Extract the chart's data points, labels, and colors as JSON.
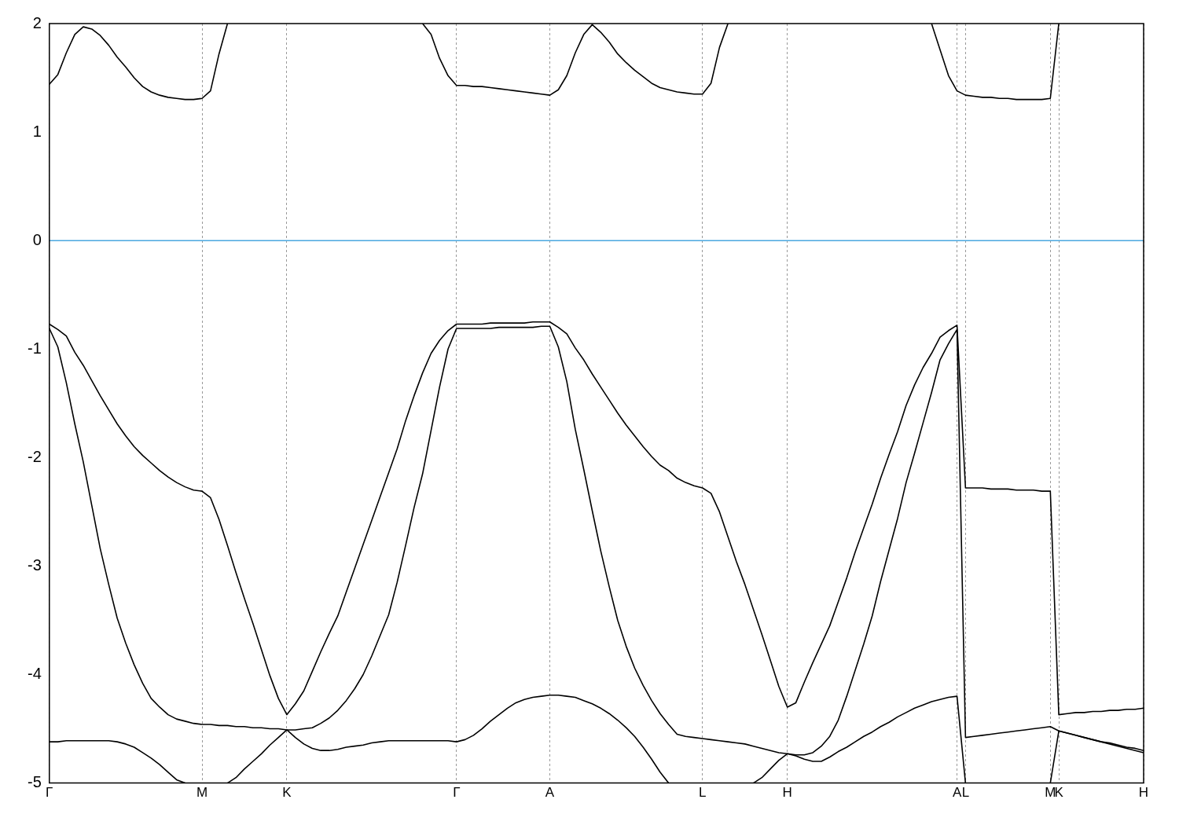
{
  "chart_data": {
    "type": "line",
    "ylim": [
      -5,
      2
    ],
    "categories": [
      "Γ",
      null,
      null,
      null,
      null,
      null,
      null,
      null,
      null,
      null,
      null,
      null,
      null,
      null,
      null,
      null,
      null,
      null,
      "M",
      null,
      null,
      null,
      null,
      null,
      null,
      null,
      null,
      null,
      "K",
      null,
      null,
      null,
      null,
      null,
      null,
      null,
      null,
      null,
      null,
      null,
      null,
      null,
      null,
      null,
      null,
      null,
      null,
      null,
      "Γ",
      null,
      null,
      null,
      null,
      null,
      null,
      null,
      null,
      null,
      null,
      "A",
      null,
      null,
      null,
      null,
      null,
      null,
      null,
      null,
      null,
      null,
      null,
      null,
      null,
      null,
      null,
      null,
      null,
      "L",
      null,
      null,
      null,
      null,
      null,
      null,
      null,
      null,
      null,
      "H",
      null,
      null,
      null,
      null,
      null,
      null,
      null,
      null,
      null,
      null,
      null,
      null,
      null,
      null,
      null,
      null,
      null,
      null,
      null,
      "A",
      "L",
      null,
      null,
      null,
      null,
      null,
      null,
      null,
      null,
      null,
      "M",
      "K",
      null,
      null,
      null,
      null,
      null,
      null,
      null,
      null,
      null,
      "H"
    ],
    "yticks": [
      -5,
      -4,
      -3,
      -2,
      -1,
      0,
      1,
      2
    ],
    "grid": "x",
    "legend": false,
    "marker": "none",
    "line_style": "solid",
    "ref_lines": [
      {
        "axis": "y",
        "value": 0,
        "color": "#4aa8e0"
      }
    ],
    "series": [
      {
        "color": "#000000",
        "values": [
          1.44,
          1.53,
          1.73,
          1.9,
          1.97,
          1.95,
          1.89,
          1.8,
          1.69,
          1.6,
          1.5,
          1.42,
          1.37,
          1.34,
          1.32,
          1.31,
          1.3,
          1.3,
          1.31,
          1.38,
          1.72,
          2.0,
          null,
          null,
          null,
          null,
          null,
          null,
          null,
          null,
          null,
          null,
          null,
          null,
          null,
          null,
          null,
          null,
          null,
          null,
          null,
          null,
          null,
          null,
          2.0,
          1.9,
          1.68,
          1.52,
          1.43,
          1.43,
          1.42,
          1.42,
          1.41,
          1.4,
          1.39,
          1.38,
          1.37,
          1.36,
          1.35,
          1.34,
          1.39,
          1.52,
          1.73,
          1.9,
          1.99,
          1.92,
          1.83,
          1.72,
          1.64,
          1.57,
          1.51,
          1.45,
          1.41,
          1.39,
          1.37,
          1.36,
          1.35,
          1.35,
          1.45,
          1.78,
          2.0,
          null,
          null,
          null,
          null,
          null,
          null,
          null,
          null,
          null,
          null,
          null,
          null,
          null,
          null,
          null,
          null,
          null,
          null,
          null,
          null,
          null,
          null,
          null,
          2.0,
          1.76,
          1.52,
          1.38,
          1.34,
          1.33,
          1.32,
          1.32,
          1.31,
          1.31,
          1.3,
          1.3,
          1.3,
          1.3,
          1.31,
          2.0,
          null,
          null,
          null,
          null,
          null,
          null,
          null,
          null,
          null,
          null
        ]
      },
      {
        "color": "#000000",
        "values": [
          -0.77,
          -0.82,
          -0.88,
          -1.03,
          -1.15,
          -1.29,
          -1.43,
          -1.56,
          -1.69,
          -1.8,
          -1.9,
          -1.98,
          -2.05,
          -2.12,
          -2.18,
          -2.23,
          -2.27,
          -2.3,
          -2.31,
          -2.37,
          -2.57,
          -2.81,
          -3.06,
          -3.3,
          -3.53,
          -3.77,
          -4.01,
          -4.22,
          -4.37,
          -4.27,
          -4.15,
          -3.97,
          -3.79,
          -3.62,
          -3.46,
          -3.24,
          -3.02,
          -2.8,
          -2.58,
          -2.36,
          -2.14,
          -1.92,
          -1.66,
          -1.43,
          -1.22,
          -1.04,
          -0.92,
          -0.83,
          -0.77,
          -0.77,
          -0.77,
          -0.77,
          -0.76,
          -0.76,
          -0.76,
          -0.76,
          -0.76,
          -0.75,
          -0.75,
          -0.75,
          -0.8,
          -0.86,
          -0.99,
          -1.1,
          -1.23,
          -1.35,
          -1.47,
          -1.59,
          -1.7,
          -1.8,
          -1.9,
          -1.99,
          -2.07,
          -2.12,
          -2.19,
          -2.23,
          -2.26,
          -2.28,
          -2.33,
          -2.5,
          -2.73,
          -2.96,
          -3.17,
          -3.4,
          -3.63,
          -3.87,
          -4.11,
          -4.3,
          -4.26,
          -4.07,
          -3.89,
          -3.72,
          -3.55,
          -3.33,
          -3.11,
          -2.87,
          -2.65,
          -2.43,
          -2.19,
          -1.97,
          -1.76,
          -1.52,
          -1.33,
          -1.17,
          -1.04,
          -0.89,
          -0.83,
          -0.78,
          -2.28,
          -2.28,
          -2.28,
          -2.29,
          -2.29,
          -2.29,
          -2.3,
          -2.3,
          -2.3,
          -2.31,
          -2.31,
          -4.37,
          -4.36,
          -4.35,
          -4.35,
          -4.34,
          -4.34,
          -4.33,
          -4.33,
          -4.32,
          -4.32,
          -4.31
        ]
      },
      {
        "color": "#000000",
        "values": [
          -0.81,
          -0.98,
          -1.31,
          -1.69,
          -2.04,
          -2.44,
          -2.84,
          -3.17,
          -3.48,
          -3.71,
          -3.91,
          -4.08,
          -4.22,
          -4.3,
          -4.37,
          -4.41,
          -4.43,
          -4.45,
          -4.46,
          -4.46,
          -4.47,
          -4.47,
          -4.48,
          -4.48,
          -4.49,
          -4.49,
          -4.5,
          -4.5,
          -4.51,
          -4.51,
          -4.5,
          -4.49,
          -4.45,
          -4.4,
          -4.33,
          -4.24,
          -4.13,
          -4.0,
          -3.83,
          -3.64,
          -3.45,
          -3.15,
          -2.81,
          -2.46,
          -2.15,
          -1.75,
          -1.35,
          -1.0,
          -0.81,
          -0.81,
          -0.81,
          -0.81,
          -0.81,
          -0.8,
          -0.8,
          -0.8,
          -0.8,
          -0.8,
          -0.79,
          -0.79,
          -0.98,
          -1.3,
          -1.74,
          -2.11,
          -2.49,
          -2.86,
          -3.19,
          -3.5,
          -3.74,
          -3.94,
          -4.1,
          -4.24,
          -4.36,
          -4.46,
          -4.55,
          -4.57,
          -4.58,
          -4.59,
          -4.6,
          -4.61,
          -4.62,
          -4.63,
          -4.64,
          -4.66,
          -4.68,
          -4.7,
          -4.72,
          -4.73,
          -4.74,
          -4.74,
          -4.72,
          -4.66,
          -4.57,
          -4.42,
          -4.2,
          -3.96,
          -3.72,
          -3.46,
          -3.14,
          -2.85,
          -2.56,
          -2.23,
          -1.96,
          -1.68,
          -1.4,
          -1.1,
          -0.95,
          -0.82,
          -4.58,
          -4.57,
          -4.56,
          -4.55,
          -4.54,
          -4.53,
          -4.52,
          -4.51,
          -4.5,
          -4.49,
          -4.48,
          -4.52,
          -4.54,
          -4.56,
          -4.58,
          -4.6,
          -4.62,
          -4.63,
          -4.65,
          -4.67,
          -4.68,
          -4.7
        ]
      },
      {
        "color": "#000000",
        "values": [
          -4.62,
          -4.62,
          -4.61,
          -4.61,
          -4.61,
          -4.61,
          -4.61,
          -4.61,
          -4.62,
          -4.64,
          -4.67,
          -4.72,
          -4.77,
          -4.83,
          -4.9,
          -4.97,
          -5.0,
          null,
          null,
          null,
          null,
          -5.0,
          -4.95,
          -4.87,
          -4.8,
          -4.73,
          -4.65,
          -4.58,
          -4.51,
          -4.58,
          -4.64,
          -4.68,
          -4.7,
          -4.7,
          -4.69,
          -4.67,
          -4.66,
          -4.65,
          -4.63,
          -4.62,
          -4.61,
          -4.61,
          -4.61,
          -4.61,
          -4.61,
          -4.61,
          -4.61,
          -4.61,
          -4.62,
          -4.6,
          -4.56,
          -4.5,
          -4.43,
          -4.37,
          -4.31,
          -4.26,
          -4.23,
          -4.21,
          -4.2,
          -4.19,
          -4.19,
          -4.2,
          -4.21,
          -4.24,
          -4.27,
          -4.31,
          -4.36,
          -4.42,
          -4.49,
          -4.57,
          -4.67,
          -4.78,
          -4.9,
          -5.0,
          null,
          null,
          null,
          null,
          null,
          null,
          null,
          null,
          null,
          -5.0,
          -4.95,
          -4.87,
          -4.79,
          -4.73,
          -4.75,
          -4.78,
          -4.8,
          -4.8,
          -4.76,
          -4.71,
          -4.67,
          -4.62,
          -4.57,
          -4.53,
          -4.48,
          -4.44,
          -4.39,
          -4.35,
          -4.31,
          -4.28,
          -4.25,
          -4.23,
          -4.21,
          -4.2,
          -5.0,
          null,
          null,
          null,
          null,
          null,
          null,
          null,
          null,
          null,
          -5.0,
          -4.52,
          -4.54,
          -4.56,
          -4.58,
          -4.6,
          -4.62,
          -4.64,
          -4.66,
          -4.68,
          -4.7,
          -4.72
        ]
      }
    ]
  }
}
